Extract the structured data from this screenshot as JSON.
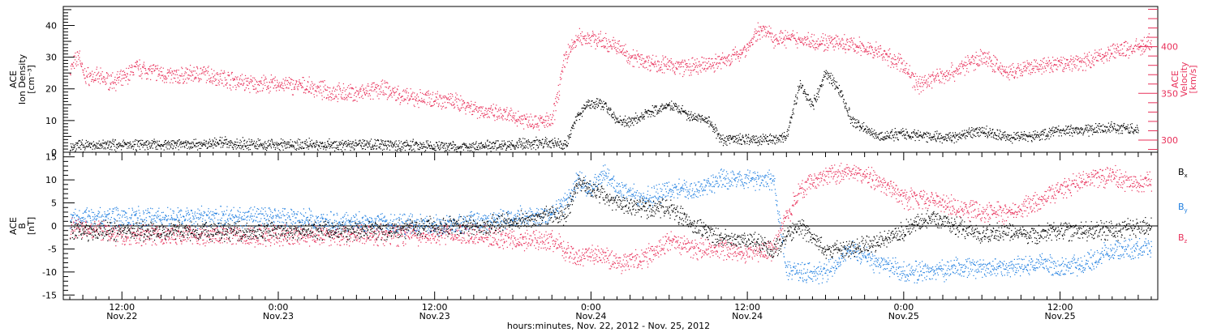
{
  "chart_data": [
    {
      "type": "scatter",
      "panel": "top",
      "ylabel_lines": [
        "ACE",
        "Ion Density",
        "[cm⁻³]"
      ],
      "y2label_lines": [
        "ACE",
        "Velocity",
        "[km/s]"
      ],
      "ylim": [
        0,
        46
      ],
      "y2lim": [
        287,
        443
      ],
      "yticks": [
        0,
        10,
        20,
        30,
        40
      ],
      "y2ticks": [
        300,
        350,
        400
      ],
      "x_hours_range": [
        7.5,
        91.5
      ],
      "series": [
        {
          "name": "",
          "axis": "left",
          "color": "#000000",
          "x_hours": [
            8,
            12,
            16,
            20,
            24,
            28,
            32,
            36,
            40,
            42,
            44,
            45,
            46,
            47,
            48,
            49,
            50,
            51,
            52,
            54,
            55,
            56,
            57,
            58,
            60,
            62,
            63,
            64,
            65,
            66,
            67,
            68,
            70,
            72,
            74,
            76,
            78,
            80,
            82,
            84,
            86,
            88,
            90
          ],
          "values": [
            2,
            2.5,
            2.5,
            3,
            2.5,
            2.5,
            2.5,
            2,
            2,
            2.5,
            3,
            3,
            2.5,
            12,
            16,
            15,
            10,
            10,
            12,
            15,
            13,
            11,
            10,
            4,
            4,
            4,
            5,
            22,
            15,
            25,
            20,
            10,
            5,
            6,
            5,
            5,
            7,
            5,
            5,
            7,
            7,
            8,
            7
          ]
        },
        {
          "name": "",
          "axis": "right",
          "color": "#e8305a",
          "x_hours": [
            8,
            8.7,
            9,
            10,
            11,
            12,
            13,
            14,
            16,
            18,
            20,
            22,
            24,
            26,
            28,
            30,
            32,
            34,
            36,
            38,
            40,
            42,
            44,
            45,
            46,
            47,
            48,
            49,
            50,
            51,
            52,
            54,
            56,
            58,
            59,
            60,
            61,
            62,
            64,
            66,
            68,
            70,
            72,
            73,
            74,
            76,
            78,
            80,
            82,
            84,
            86,
            88,
            90,
            91
          ],
          "values": [
            375,
            392,
            370,
            368,
            364,
            365,
            378,
            375,
            368,
            372,
            366,
            360,
            360,
            358,
            352,
            350,
            355,
            345,
            345,
            340,
            330,
            325,
            320,
            320,
            390,
            410,
            410,
            405,
            400,
            390,
            385,
            380,
            378,
            385,
            390,
            400,
            420,
            410,
            408,
            405,
            402,
            395,
            380,
            360,
            365,
            375,
            390,
            372,
            378,
            382,
            385,
            395,
            400,
            405
          ]
        }
      ]
    },
    {
      "type": "scatter",
      "panel": "bottom",
      "ylabel_lines": [
        "ACE",
        "B",
        "[nT]"
      ],
      "ylim": [
        -16,
        16
      ],
      "yticks": [
        -15,
        -10,
        -5,
        0,
        5,
        10,
        15
      ],
      "x_hours_range": [
        7.5,
        91.5
      ],
      "series": [
        {
          "name": "Bx",
          "color": "#000000",
          "x_hours": [
            8,
            12,
            16,
            20,
            24,
            28,
            32,
            36,
            40,
            42,
            44,
            45,
            46,
            47,
            48,
            50,
            52,
            54,
            56,
            58,
            60,
            62,
            63,
            64,
            66,
            68,
            70,
            72,
            74,
            76,
            78,
            80,
            82,
            84,
            86,
            88,
            90,
            91
          ],
          "values": [
            -1,
            -1,
            -1,
            -1,
            -1,
            -1,
            -1,
            0,
            0,
            1,
            2,
            3,
            2,
            10,
            8,
            5,
            4,
            4,
            0,
            -3,
            -3,
            -5,
            -2,
            0,
            -5,
            -5,
            -3,
            -1,
            2,
            0,
            -2,
            -1,
            -2,
            -1,
            -1,
            -1,
            0,
            0
          ]
        },
        {
          "name": "By",
          "color": "#1e7ee0",
          "x_hours": [
            8,
            12,
            16,
            20,
            24,
            28,
            32,
            36,
            40,
            42,
            44,
            45,
            46,
            47,
            48,
            49,
            50,
            52,
            54,
            56,
            58,
            60,
            62,
            63,
            64,
            66,
            68,
            70,
            72,
            74,
            76,
            78,
            80,
            82,
            84,
            86,
            88,
            90,
            91
          ],
          "values": [
            2,
            2,
            2,
            2,
            2,
            1,
            1,
            0,
            1,
            2,
            2,
            3,
            5,
            10,
            8,
            12,
            8,
            6,
            8,
            8,
            10,
            10,
            10,
            -10,
            -10,
            -10,
            -5,
            -8,
            -10,
            -10,
            -9,
            -9,
            -9,
            -8,
            -9,
            -8,
            -5,
            -5,
            -5
          ]
        },
        {
          "name": "Bz",
          "color": "#e8305a",
          "x_hours": [
            8,
            12,
            16,
            20,
            24,
            28,
            32,
            36,
            40,
            42,
            44,
            45,
            46,
            47,
            48,
            50,
            52,
            54,
            56,
            58,
            60,
            62,
            63,
            64,
            66,
            68,
            70,
            72,
            74,
            76,
            78,
            80,
            82,
            84,
            86,
            88,
            90,
            91
          ],
          "values": [
            0,
            -2,
            -2,
            -2,
            -2,
            -2,
            -2,
            -2,
            -2,
            -3,
            -3,
            -3,
            -5,
            -7,
            -6,
            -8,
            -7,
            -3,
            -5,
            -5,
            -6,
            -5,
            2,
            8,
            11,
            12,
            10,
            6,
            6,
            4,
            3,
            3,
            5,
            8,
            10,
            11,
            9,
            10
          ]
        }
      ]
    }
  ],
  "xaxis": {
    "title": "hours:minutes, Nov. 22, 2012 - Nov. 25, 2012",
    "ticks": [
      {
        "hour": 12,
        "time": "12:00",
        "date": "Nov.22"
      },
      {
        "hour": 24,
        "time": "0:00",
        "date": "Nov.23"
      },
      {
        "hour": 36,
        "time": "12:00",
        "date": "Nov.23"
      },
      {
        "hour": 48,
        "time": "0:00",
        "date": "Nov.24"
      },
      {
        "hour": 60,
        "time": "12:00",
        "date": "Nov.24"
      },
      {
        "hour": 72,
        "time": "0:00",
        "date": "Nov.25"
      },
      {
        "hour": 84,
        "time": "12:00",
        "date": "Nov.25"
      }
    ]
  },
  "legend": [
    {
      "label": "B",
      "sub": "x",
      "color": "#000000"
    },
    {
      "label": "B",
      "sub": "y",
      "color": "#1e7ee0"
    },
    {
      "label": "B",
      "sub": "z",
      "color": "#e8305a"
    }
  ]
}
